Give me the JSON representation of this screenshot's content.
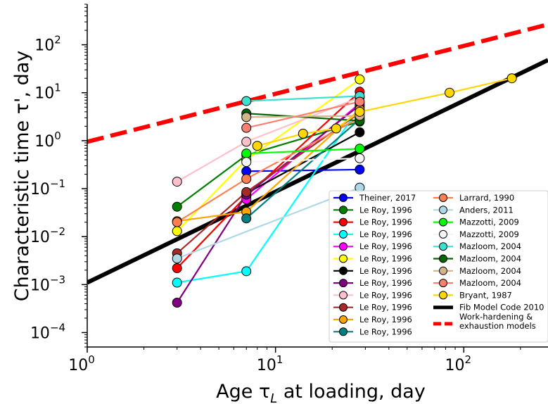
{
  "chart_data": {
    "type": "line",
    "xlabel": "Age τ_L at loading, day",
    "ylabel": "Characteristic time τ', day",
    "xscale": "log",
    "yscale": "log",
    "xlim": [
      1,
      280
    ],
    "ylim": [
      5e-05,
      700
    ],
    "x_ticks": [
      {
        "value": 1,
        "base": "10",
        "exp": "0"
      },
      {
        "value": 10,
        "base": "10",
        "exp": "1"
      },
      {
        "value": 100,
        "base": "10",
        "exp": "2"
      }
    ],
    "y_ticks": [
      {
        "value": 0.0001,
        "base": "10",
        "exp": "−4"
      },
      {
        "value": 0.001,
        "base": "10",
        "exp": "−3"
      },
      {
        "value": 0.01,
        "base": "10",
        "exp": "−2"
      },
      {
        "value": 0.1,
        "base": "10",
        "exp": "−1"
      },
      {
        "value": 1,
        "base": "10",
        "exp": "0"
      },
      {
        "value": 10,
        "base": "10",
        "exp": "1"
      },
      {
        "value": 100,
        "base": "10",
        "exp": "2"
      }
    ],
    "grid": false,
    "legend_position": "bottom-right",
    "series": [
      {
        "name": "Theiner, 2017",
        "color": "#0000ff",
        "x": [
          7,
          28
        ],
        "y": [
          0.23,
          0.25
        ]
      },
      {
        "name": "Le Roy, 1996",
        "color": "#008000",
        "x": [
          3,
          7,
          28
        ],
        "y": [
          0.042,
          0.5,
          2.5
        ]
      },
      {
        "name": "Le Roy, 1996",
        "color": "#ff0000",
        "x": [
          3,
          7,
          28
        ],
        "y": [
          0.0022,
          0.07,
          10.5
        ]
      },
      {
        "name": "Le Roy, 1996",
        "color": "#00ffff",
        "x": [
          3,
          7,
          28
        ],
        "y": [
          0.0011,
          0.0019,
          5.0
        ]
      },
      {
        "name": "Le Roy, 1996",
        "color": "#ff00ff",
        "x": [
          7,
          28
        ],
        "y": [
          0.06,
          6.0
        ]
      },
      {
        "name": "Le Roy, 1996",
        "color": "#ffff00",
        "x": [
          3,
          7,
          28
        ],
        "y": [
          0.013,
          0.4,
          19.0
        ]
      },
      {
        "name": "Le Roy, 1996",
        "color": "#000000",
        "x": [
          7,
          28
        ],
        "y": [
          0.08,
          1.5
        ]
      },
      {
        "name": "Le Roy, 1996",
        "color": "#800080",
        "x": [
          3,
          7,
          28
        ],
        "y": [
          0.00042,
          0.075,
          5.5
        ]
      },
      {
        "name": "Le Roy, 1996",
        "color": "#ffc0cb",
        "x": [
          3,
          7,
          28
        ],
        "y": [
          0.14,
          0.95,
          8.0
        ]
      },
      {
        "name": "Le Roy, 1996",
        "color": "#a52a2a",
        "x": [
          3,
          7,
          28
        ],
        "y": [
          0.0045,
          0.085,
          3.8
        ]
      },
      {
        "name": "Le Roy, 1996",
        "color": "#ffa500",
        "x": [
          3,
          7,
          28
        ],
        "y": [
          0.021,
          0.033,
          4.5
        ]
      },
      {
        "name": "Le Roy, 1996",
        "color": "#008080",
        "x": [
          7,
          28
        ],
        "y": [
          0.024,
          2.8
        ]
      },
      {
        "name": "Larrard, 1990",
        "color": "#ff7f50",
        "x": [
          3,
          7,
          28
        ],
        "y": [
          0.02,
          0.16,
          3.0
        ]
      },
      {
        "name": "Anders, 2011",
        "color": "#add8e6",
        "x": [
          3,
          28
        ],
        "y": [
          0.0035,
          0.105
        ]
      },
      {
        "name": "Mazzotti, 2009",
        "color": "#00ff00",
        "x": [
          7,
          28
        ],
        "y": [
          0.54,
          0.68
        ]
      },
      {
        "name": "Mazzotti, 2009",
        "color": "#f5f5f5",
        "x": [
          7,
          28
        ],
        "y": [
          0.36,
          0.43
        ]
      },
      {
        "name": "Mazloom, 2004",
        "color": "#40e0d0",
        "x": [
          7,
          28
        ],
        "y": [
          6.7,
          8.5
        ]
      },
      {
        "name": "Mazloom, 2004",
        "color": "#006400",
        "x": [
          7,
          28
        ],
        "y": [
          3.7,
          2.6
        ]
      },
      {
        "name": "Mazloom, 2004",
        "color": "#d2b48c",
        "x": [
          7,
          28
        ],
        "y": [
          3.1,
          3.3
        ]
      },
      {
        "name": "Mazloom, 2004",
        "color": "#fa8072",
        "x": [
          7,
          28
        ],
        "y": [
          1.85,
          6.5
        ]
      },
      {
        "name": "Bryant, 1987",
        "color": "#ffd700",
        "x": [
          8,
          14,
          21,
          28,
          84,
          180
        ],
        "y": [
          0.78,
          1.4,
          1.8,
          4.0,
          10.0,
          20.0
        ]
      }
    ],
    "reference_lines": [
      {
        "name": "Fib Model Code 2010",
        "color": "#000000",
        "style": "solid",
        "x": [
          1,
          280
        ],
        "y": [
          0.0011,
          48
        ]
      },
      {
        "name": "Work-hardening & exhaustion models",
        "color": "#ff0000",
        "style": "dashed",
        "x": [
          1,
          280
        ],
        "y": [
          0.95,
          265
        ]
      }
    ]
  }
}
